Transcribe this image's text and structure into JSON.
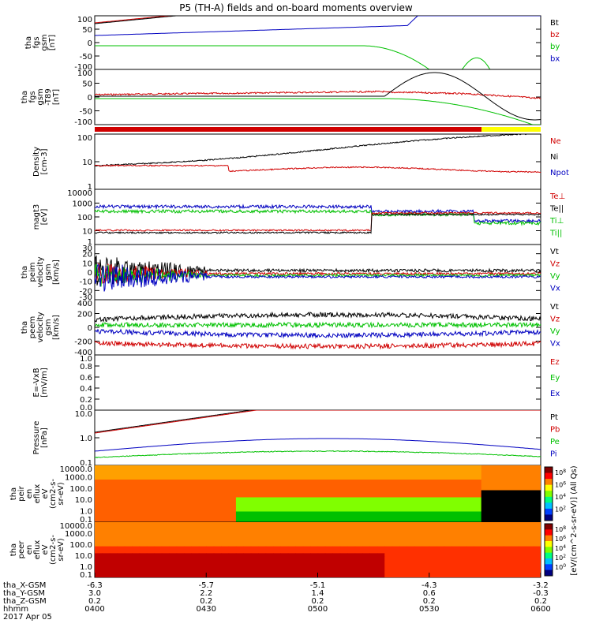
{
  "title": "P5 (TH-A) fields and on-board moments overview",
  "colors": {
    "black": "#000000",
    "red": "#d00000",
    "green": "#00c000",
    "blue": "#0000c0",
    "orange": "#ff8000",
    "yellow": "#ffff00"
  },
  "chart_data": {
    "type": "line",
    "x_ticks": [
      "0400",
      "0430",
      "0500",
      "0530",
      "0600"
    ],
    "date_label": "2017 Apr 05",
    "ephemeris": [
      {
        "label": "tha_X-GSM",
        "values": [
          "-6.3",
          "-5.7",
          "-5.1",
          "-4.3",
          "-3.2"
        ]
      },
      {
        "label": "tha_Y-GSM",
        "values": [
          "3.0",
          "2.2",
          "1.4",
          "0.6",
          "-0.3"
        ]
      },
      {
        "label": "tha_Z-GSM",
        "values": [
          "0.2",
          "0.2",
          "0.2",
          "0.2",
          "0.2"
        ]
      },
      {
        "label": "hhmm",
        "values": []
      }
    ],
    "panels": [
      {
        "ylabel": [
          "tha",
          "fgs",
          "gsm",
          "[nT]"
        ],
        "yticks": [
          "100",
          "50",
          "0",
          "-50",
          "-100"
        ],
        "legend": [
          {
            "name": "Bt",
            "color": "black"
          },
          {
            "name": "bz",
            "color": "red"
          },
          {
            "name": "by",
            "color": "green"
          },
          {
            "name": "bx",
            "color": "blue"
          }
        ]
      },
      {
        "ylabel": [
          "tha",
          "fgs",
          "gsm",
          "-T89",
          "[nT]"
        ],
        "yticks": [
          "100",
          "50",
          "0",
          "-50",
          "-100"
        ],
        "legend": []
      },
      {
        "ylabel": [
          "Density",
          "[cm-3]"
        ],
        "yticks": [
          "100",
          "10",
          "1"
        ],
        "log": true,
        "legend": [
          {
            "name": "Ne",
            "color": "red"
          },
          {
            "name": "Ni",
            "color": "black"
          },
          {
            "name": "Npot",
            "color": "blue"
          }
        ]
      },
      {
        "ylabel": [
          "magt3",
          "[eV]"
        ],
        "yticks": [
          "10000",
          "1000",
          "100",
          "10",
          "1"
        ],
        "log": true,
        "legend": [
          {
            "name": "Te⊥",
            "color": "red"
          },
          {
            "name": "Te||",
            "color": "black"
          },
          {
            "name": "Ti⊥",
            "color": "green"
          },
          {
            "name": "Ti||",
            "color": "green"
          }
        ]
      },
      {
        "ylabel": [
          "tha",
          "peim",
          "velocity",
          "gsm",
          "[km/s]"
        ],
        "yticks": [
          "30",
          "20",
          "10",
          "0",
          "-10",
          "-20",
          "-30"
        ],
        "legend": [
          {
            "name": "Vt",
            "color": "black"
          },
          {
            "name": "Vz",
            "color": "red"
          },
          {
            "name": "Vy",
            "color": "green"
          },
          {
            "name": "Vx",
            "color": "blue"
          }
        ]
      },
      {
        "ylabel": [
          "tha",
          "peem",
          "velocity",
          "gsm",
          "[km/s]"
        ],
        "yticks": [
          "400",
          "200",
          "0",
          "-200",
          "-400"
        ],
        "legend": [
          {
            "name": "Vt",
            "color": "black"
          },
          {
            "name": "Vz",
            "color": "red"
          },
          {
            "name": "Vy",
            "color": "green"
          },
          {
            "name": "Vx",
            "color": "blue"
          }
        ]
      },
      {
        "ylabel": [
          "E=-VxB",
          "[mV/m]"
        ],
        "yticks": [
          "1.0",
          "0.8",
          "0.6",
          "0.4",
          "0.2",
          "0.0"
        ],
        "legend": [
          {
            "name": "Ez",
            "color": "red"
          },
          {
            "name": "Ey",
            "color": "green"
          },
          {
            "name": "Ex",
            "color": "blue"
          }
        ]
      },
      {
        "ylabel": [
          "Pressure",
          "[nPa]"
        ],
        "yticks": [
          "10.0",
          "1.0",
          "0.1"
        ],
        "log": true,
        "legend": [
          {
            "name": "Pt",
            "color": "black"
          },
          {
            "name": "Pb",
            "color": "red"
          },
          {
            "name": "Pe",
            "color": "green"
          },
          {
            "name": "Pi",
            "color": "blue"
          }
        ]
      },
      {
        "ylabel": [
          "tha",
          "peir",
          "en",
          "eflux",
          "eV",
          "(cm2-s-",
          "sr-eV)"
        ],
        "yticks": [
          "10000.0",
          "1000.0",
          "100.0",
          "10.0",
          "1.0",
          "0.1"
        ],
        "colorbar": [
          "10^8",
          "10^6",
          "10^4",
          "10^2"
        ]
      },
      {
        "ylabel": [
          "tha",
          "peer",
          "en",
          "eflux",
          "eV",
          "(cm2-s-",
          "sr-eV)"
        ],
        "yticks": [
          "10000.0",
          "1000.0",
          "100.0",
          "10.0",
          "1.0",
          "0.1"
        ],
        "colorbar": [
          "10^8",
          "10^6",
          "10^4",
          "10^2",
          "10^0"
        ]
      }
    ],
    "colorbar_label": "[eV/(cm^2-s-sr-eV)] (All Qs)"
  }
}
